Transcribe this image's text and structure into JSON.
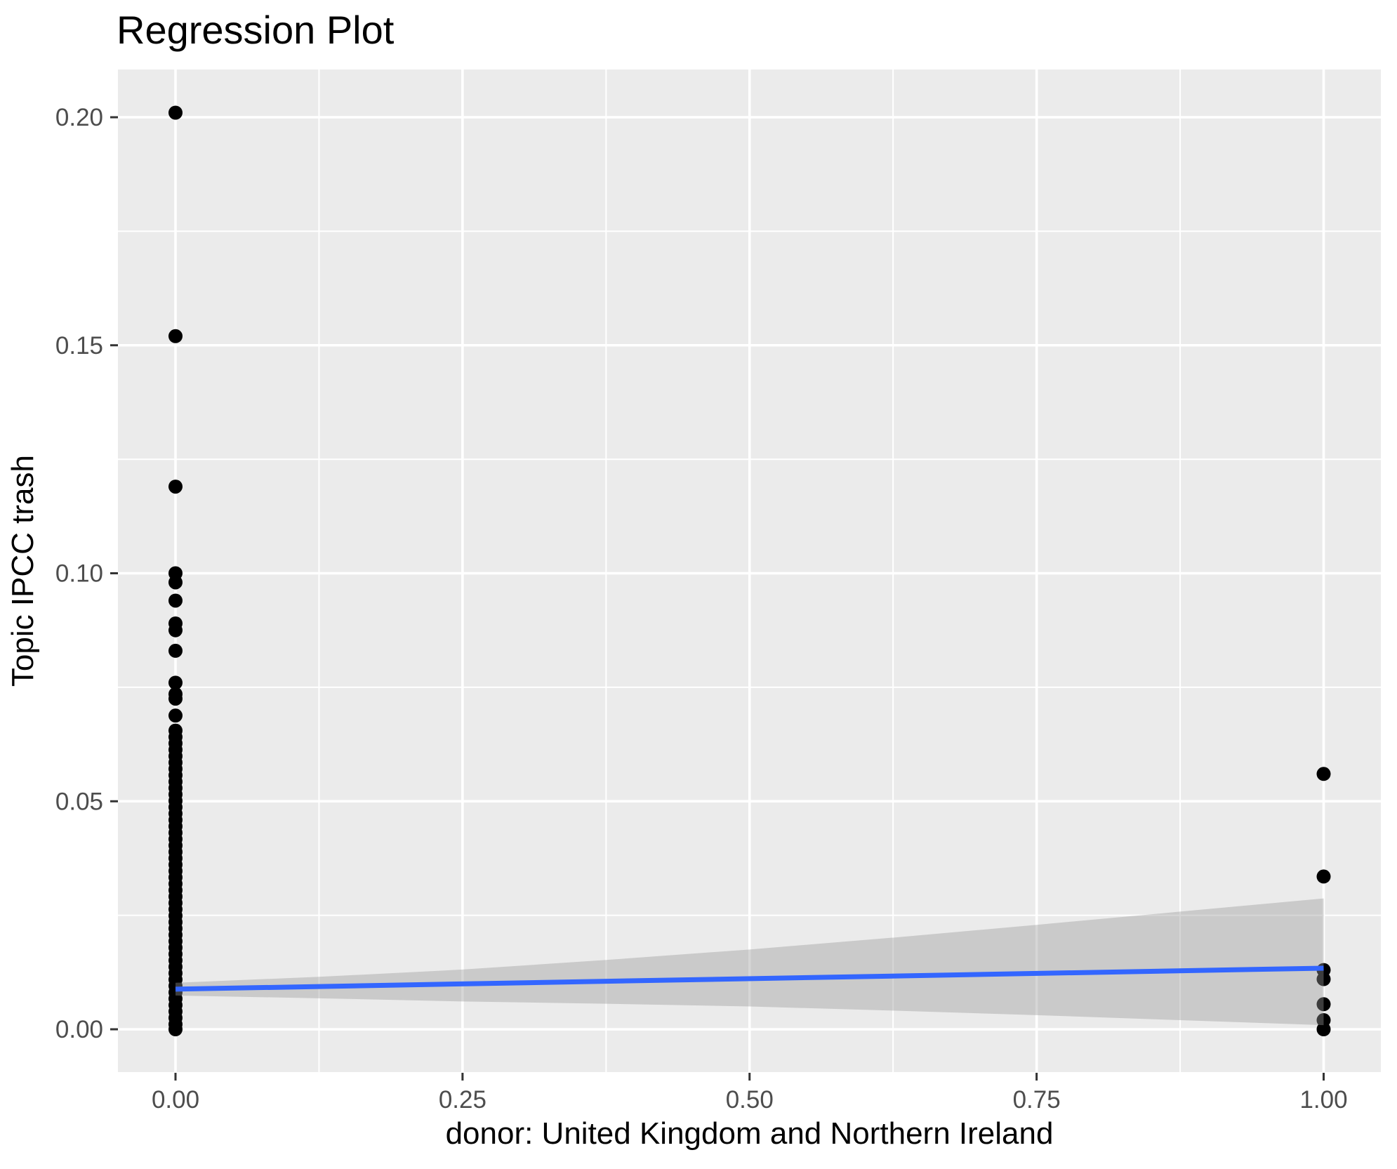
{
  "chart_data": {
    "type": "scatter",
    "title": "Regression Plot",
    "xlabel": "donor: United Kingdom and Northern Ireland",
    "ylabel": "Topic IPCC trash",
    "xlim": [
      -0.05,
      1.05
    ],
    "ylim": [
      -0.0101,
      0.2111
    ],
    "grid": "major+minor white on gray panel",
    "legend_position": "none",
    "x_ticks": {
      "values": [
        0,
        0.25,
        0.5,
        0.75,
        1
      ],
      "labels": [
        "0.00",
        "0.25",
        "0.50",
        "0.75",
        "1.00"
      ],
      "minor": [
        0.125,
        0.375,
        0.625,
        0.875
      ]
    },
    "y_ticks": {
      "values": [
        0,
        0.05,
        0.1,
        0.15,
        0.2
      ],
      "labels": [
        "0.00",
        "0.05",
        "0.10",
        "0.15",
        "0.20"
      ],
      "minor": [
        0.025,
        0.075,
        0.125,
        0.175
      ]
    },
    "colors": {
      "point": "#000000",
      "smooth_line": "#3366FF",
      "ci_band": "#999999",
      "ci_band_alpha": 0.4,
      "panel_background": "#EBEBEB",
      "grid": "#FFFFFF",
      "tick_label": "#4D4D4D",
      "tick_mark": "#333333",
      "title_color": "#000000"
    },
    "points": [
      {
        "x": 0,
        "y": [
          0.201,
          0.152,
          0.119,
          0.1,
          0.098,
          0.094,
          0.089,
          0.0875,
          0.083,
          0.076,
          0.0735,
          0.0725,
          0.0688,
          0.0655,
          0.0641,
          0.0627,
          0.0613,
          0.0599,
          0.0585,
          0.0571,
          0.0557,
          0.0543,
          0.0529,
          0.0515,
          0.0501,
          0.0487,
          0.0473,
          0.0459,
          0.0445,
          0.0431,
          0.0417,
          0.0403,
          0.0389,
          0.0375,
          0.0361,
          0.0347,
          0.0333,
          0.0319,
          0.0305,
          0.0291,
          0.0277,
          0.0263,
          0.0249,
          0.0235,
          0.0221,
          0.0207,
          0.0193,
          0.0179,
          0.0165,
          0.0151,
          0.0137,
          0.0123,
          0.0109,
          0.0095,
          0.0081,
          0.0067,
          0.0053,
          0.0039,
          0.0025,
          0.0011,
          0.0
        ]
      },
      {
        "x": 1,
        "y": [
          0.056,
          0.0335,
          0.013,
          0.011,
          0.0055,
          0.002,
          0.0
        ]
      }
    ],
    "regression_line": {
      "x": [
        0,
        1
      ],
      "y": [
        0.0088,
        0.0134
      ]
    },
    "confidence_band": {
      "x": [
        0,
        0.125,
        0.25,
        0.375,
        0.5,
        0.625,
        0.75,
        0.875,
        1
      ],
      "upper": [
        0.0102,
        0.0115,
        0.0131,
        0.0152,
        0.0175,
        0.0201,
        0.0229,
        0.0258,
        0.0287
      ],
      "lower": [
        0.0074,
        0.0068,
        0.0061,
        0.0056,
        0.005,
        0.0041,
        0.0031,
        0.002,
        0.0009
      ]
    },
    "point_radius_px": 10
  }
}
